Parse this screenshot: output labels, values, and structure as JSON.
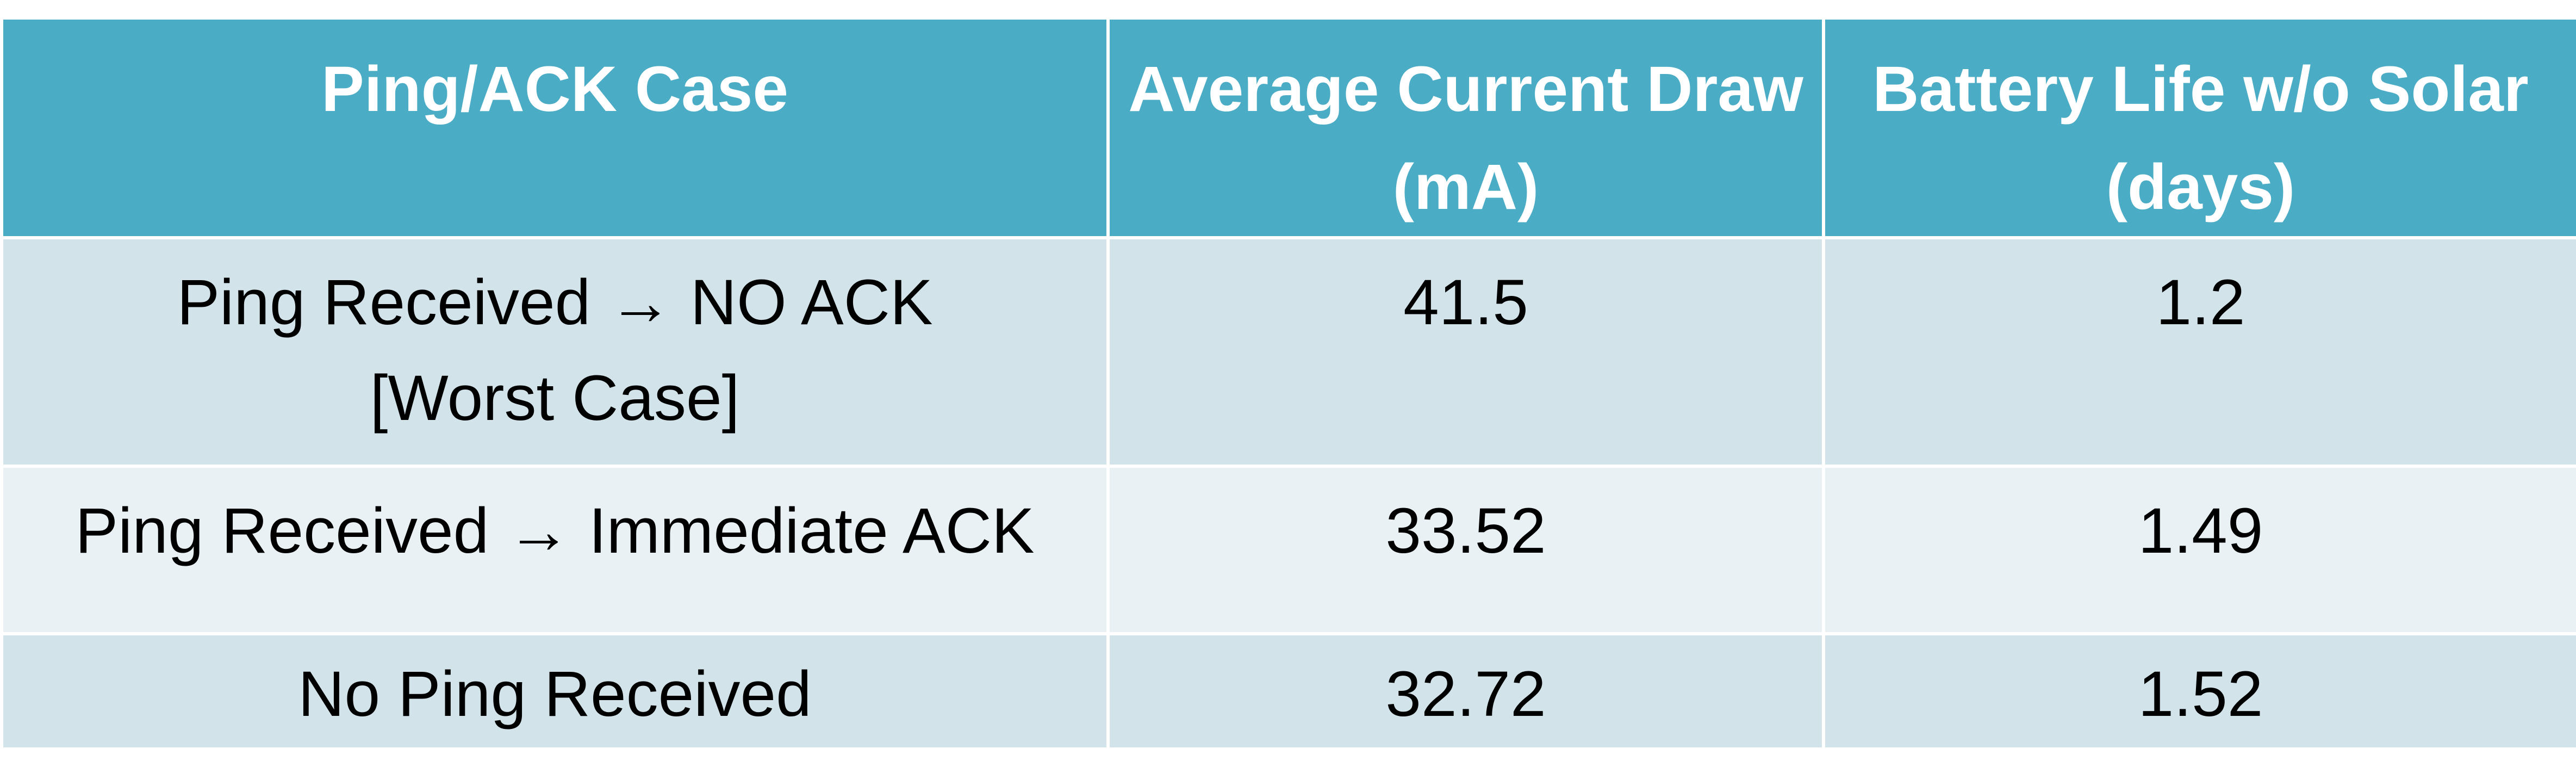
{
  "table": {
    "headers": [
      "Ping/ACK Case",
      "Average Current Draw (mA)",
      "Battery Life w/o Solar (days)"
    ],
    "rows": [
      {
        "case": "Ping Received → NO ACK [Worst Case]",
        "current": "41.5",
        "battery_life": "1.2"
      },
      {
        "case": "Ping Received → Immediate ACK",
        "current": "33.52",
        "battery_life": "1.49"
      },
      {
        "case": "No Ping Received",
        "current": "32.72",
        "battery_life": "1.52"
      }
    ]
  },
  "colors": {
    "header_background": "#4bacc6",
    "header_text": "#ffffff",
    "row_odd_background": "#d2e3ea",
    "row_even_background": "#e9f1f5",
    "body_text": "#000000"
  }
}
